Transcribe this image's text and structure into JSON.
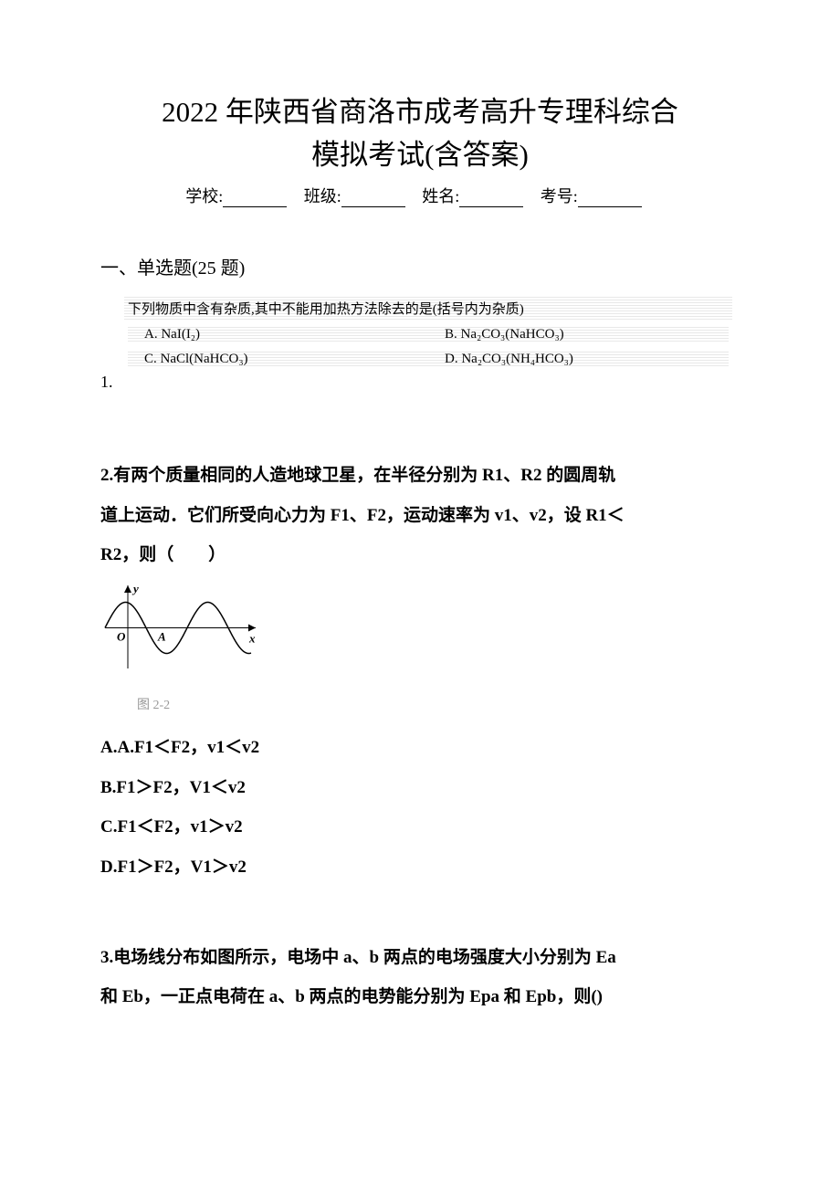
{
  "title_line1": "2022 年陕西省商洛市成考高升专理科综合",
  "title_line2": "模拟考试(含答案)",
  "form": {
    "school_label": "学校:",
    "class_label": "班级:",
    "name_label": "姓名:",
    "exam_no_label": "考号:"
  },
  "section": {
    "header": "一、单选题(25 题)"
  },
  "q1": {
    "number": "1.",
    "stem": "下列物质中含有杂质,其中不能用加热方法除去的是(括号内为杂质)",
    "optA": "A. NaI(I₂)",
    "optB": "B. Na₂CO₃(NaHCO₃)",
    "optC": "C. NaCl(NaHCO₃)",
    "optD": "D. Na₂CO₃(NH₄HCO₃)"
  },
  "q2": {
    "text_l1": "2.有两个质量相同的人造地球卫星，在半径分别为 R1、R2 的圆周轨",
    "text_l2": "道上运动．它们所受向心力为 F1、F2，运动速率为 v1、v2，设 R1＜",
    "text_l3": "R2，则（　　）",
    "figure": {
      "caption": "图 2-2",
      "width": 175,
      "height": 105,
      "axis_color": "#000000",
      "curve_color": "#000000",
      "line_width": 1.5,
      "y_label": "y",
      "x_label": "x",
      "origin_label": "O",
      "mid_label": "A",
      "amplitude": 28,
      "period": 90,
      "phase_shift": -30
    },
    "optA": "A.A.F1＜F2，v1＜v2",
    "optB": "B.F1＞F2，V1＜v2",
    "optC": "C.F1＜F2，v1＞v2",
    "optD": "D.F1＞F2，V1＞v2"
  },
  "q3": {
    "text_l1": "3.电场线分布如图所示，电场中 a、b 两点的电场强度大小分别为 Ea",
    "text_l2": "和 Eb，一正点电荷在 a、b 两点的电势能分别为 Epa 和 Epb，则()"
  },
  "colors": {
    "background": "#ffffff",
    "text": "#000000",
    "caption": "#999999",
    "hatching": "#e8e8e8"
  }
}
